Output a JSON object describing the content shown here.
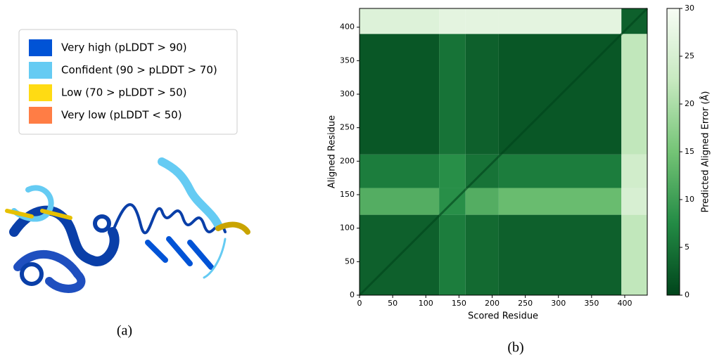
{
  "panel_a": {
    "legend": [
      {
        "label": "Very high (pLDDT > 90)",
        "color": "#0053d6"
      },
      {
        "label": "Confident (90 > pLDDT > 70)",
        "color": "#65cbf3"
      },
      {
        "label": "Low (70 > pLDDT > 50)",
        "color": "#ffdb13"
      },
      {
        "label": "Very low (pLDDT < 50)",
        "color": "#ff7d45"
      }
    ],
    "caption": "(a)"
  },
  "chart_data": {
    "type": "heatmap",
    "caption": "(b)",
    "xlabel": "Scored Residue",
    "ylabel": "Aligned Residue",
    "x_edges": [
      0,
      120,
      160,
      210,
      395,
      434
    ],
    "y_edges": [
      0,
      120,
      160,
      210,
      390,
      428
    ],
    "values": [
      [
        3,
        6,
        4,
        3,
        22
      ],
      [
        12,
        8,
        12,
        14,
        25
      ],
      [
        6,
        8,
        5,
        6,
        24
      ],
      [
        2,
        5,
        3,
        2,
        22
      ],
      [
        26,
        27,
        27,
        27,
        3
      ]
    ],
    "xlim": [
      0,
      434
    ],
    "ylim": [
      0,
      428
    ],
    "xticks": [
      0,
      50,
      100,
      150,
      200,
      250,
      300,
      350,
      400
    ],
    "yticks": [
      0,
      50,
      100,
      150,
      200,
      250,
      300,
      350,
      400
    ],
    "colormap": [
      "#00441b",
      "#238b45",
      "#74c476",
      "#c7e9c0",
      "#f7fcf5"
    ],
    "colorbar": {
      "label": "Predicted Aligned Error (Å)",
      "lim": [
        0,
        30
      ],
      "ticks": [
        0,
        5,
        10,
        15,
        20,
        25,
        30
      ]
    }
  }
}
